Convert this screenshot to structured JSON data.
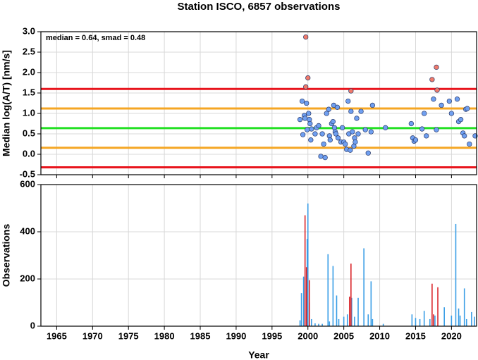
{
  "chart_data": [
    {
      "type": "scatter",
      "title": "Station ISCO, 6857 observations",
      "annotation": "median = 0.64, smad = 0.48",
      "ylabel": "Median log(A/T) [nm/s]",
      "xlim": [
        1962.8,
        2023.5
      ],
      "ylim": [
        -0.5,
        3
      ],
      "yticks": [
        {
          "value": 3,
          "label": "3.0"
        },
        2.5,
        {
          "value": 2,
          "label": "2.0"
        },
        1.5,
        {
          "value": 1,
          "label": "1.0"
        },
        0.5,
        {
          "value": 0,
          "label": "0.0"
        },
        -0.5
      ],
      "grid": true,
      "hlines": [
        {
          "value": 1.6,
          "color": "#e8141c"
        },
        {
          "value": 1.12,
          "color": "#f5a623"
        },
        {
          "value": 0.64,
          "color": "#22e022"
        },
        {
          "value": 0.16,
          "color": "#f5a623"
        },
        {
          "value": -0.32,
          "color": "#e8141c"
        }
      ],
      "series": [
        {
          "color": "#6f9ff0",
          "x": [
            1998.9,
            1999.2,
            1999.3,
            1999.5,
            1999.6,
            1999.8,
            1999.9,
            2000.1,
            2000.2,
            2000.3,
            2000.4,
            2000.5,
            2001.0,
            2001.2,
            2001.5,
            2001.8,
            2002.0,
            2002.2,
            2002.4,
            2002.6,
            2002.9,
            2003.0,
            2003.1,
            2003.3,
            2003.5,
            2003.6,
            2003.7,
            2003.8,
            2003.9,
            2004.1,
            2004.2,
            2004.6,
            2004.8,
            2005.0,
            2005.2,
            2005.4,
            2005.6,
            2005.7,
            2005.9,
            2006.0,
            2006.2,
            2006.4,
            2006.5,
            2006.6,
            2006.8,
            2007.0,
            2007.4,
            2008.0,
            2008.4,
            2008.8,
            2009.0,
            2010.8,
            2014.4,
            2014.6,
            2014.8,
            2015.0,
            2015.9,
            2016.2,
            2016.5,
            2017.5,
            2017.9,
            2018.6,
            2019.7,
            2020.0,
            2020.8,
            2021.0,
            2021.3,
            2021.6,
            2021.8,
            2022.0,
            2022.2,
            2022.5,
            2023.3
          ],
          "values": [
            0.85,
            1.3,
            0.48,
            0.95,
            0.88,
            1.25,
            0.6,
            1.0,
            0.85,
            0.75,
            0.35,
            0.62,
            0.5,
            0.65,
            0.7,
            -0.05,
            0.5,
            0.25,
            -0.08,
            1.0,
            1.1,
            0.45,
            0.35,
            0.75,
            0.8,
            1.2,
            0.65,
            0.55,
            0.5,
            1.15,
            0.4,
            0.3,
            0.65,
            0.3,
            0.25,
            0.12,
            1.3,
            0.5,
            0.1,
            1.05,
            0.55,
            0.2,
            0.4,
            0.3,
            0.88,
            0.5,
            1.05,
            0.6,
            0.03,
            0.55,
            1.2,
            0.65,
            0.75,
            0.4,
            0.32,
            0.35,
            0.62,
            1.0,
            0.45,
            1.35,
            0.6,
            1.2,
            1.3,
            1.0,
            1.35,
            0.8,
            0.85,
            0.52,
            0.45,
            1.1,
            1.12,
            0.25,
            0.45
          ]
        },
        {
          "color": "#f07a6a",
          "x": [
            1999.7,
            1999.7,
            2000.0,
            2006.0,
            2017.3,
            2017.9,
            2018.0
          ],
          "values": [
            2.87,
            1.65,
            1.87,
            1.55,
            1.83,
            2.13,
            1.57
          ]
        }
      ]
    },
    {
      "type": "bar",
      "xlabel": "Year",
      "ylabel": "Observations",
      "xlim": [
        1962.8,
        2023.5
      ],
      "xticks": [
        1965,
        1970,
        1975,
        1980,
        1985,
        1990,
        1995,
        2000,
        2005,
        2010,
        2015,
        2020
      ],
      "ylim": [
        0,
        600
      ],
      "yticks": [
        0,
        200,
        400,
        600
      ],
      "grid": true,
      "series": [
        {
          "color": "#3a9ee6",
          "x": [
            1998.9,
            1999.1,
            1999.4,
            1999.9,
            2000.0,
            2000.2,
            2000.5,
            2001.0,
            2001.5,
            2002.0,
            2002.8,
            2003.0,
            2003.5,
            2004.0,
            2004.3,
            2005.0,
            2005.5,
            2006.1,
            2006.5,
            2007.0,
            2007.8,
            2008.4,
            2008.8,
            2009.0,
            2010.5,
            2014.5,
            2015.0,
            2015.6,
            2016.2,
            2017.0,
            2017.7,
            2019.0,
            2020.0,
            2020.6,
            2021.0,
            2021.2,
            2021.8,
            2022.1,
            2022.8,
            2023.2
          ],
          "values": [
            25,
            140,
            210,
            370,
            520,
            100,
            30,
            12,
            10,
            10,
            305,
            20,
            255,
            130,
            30,
            40,
            50,
            120,
            40,
            120,
            330,
            50,
            190,
            30,
            10,
            50,
            35,
            30,
            65,
            30,
            45,
            80,
            45,
            433,
            75,
            45,
            160,
            30,
            60,
            40
          ]
        },
        {
          "color": "#d9262b",
          "x": [
            1999.6,
            1999.8,
            2000.2,
            2005.8,
            2006.0,
            2017.3,
            2017.5,
            2018.1
          ],
          "values": [
            470,
            250,
            195,
            125,
            265,
            180,
            50,
            165
          ]
        }
      ]
    }
  ]
}
